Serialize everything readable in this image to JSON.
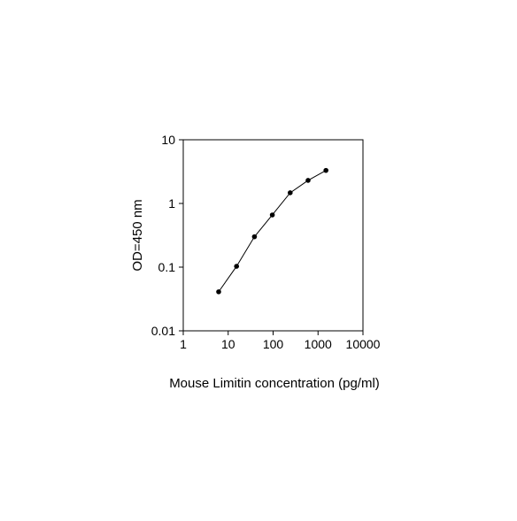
{
  "chart_data": {
    "type": "line",
    "xlabel": "Mouse Limitin concentration (pg/ml)",
    "ylabel": "OD=450 nm",
    "x": [
      6.14,
      15.36,
      38.4,
      96,
      240,
      600,
      1500
    ],
    "series": [
      {
        "color": "#000000",
        "values": [
          0.041,
          0.103,
          0.3,
          0.66,
          1.47,
          2.3,
          3.3
        ]
      }
    ],
    "xscale": "log",
    "yscale": "log",
    "xlim": [
      1,
      10000
    ],
    "ylim": [
      0.01,
      10
    ],
    "xticks": [
      1,
      10,
      100,
      1000,
      10000
    ],
    "yticks": [
      0.01,
      0.1,
      1,
      10
    ]
  }
}
